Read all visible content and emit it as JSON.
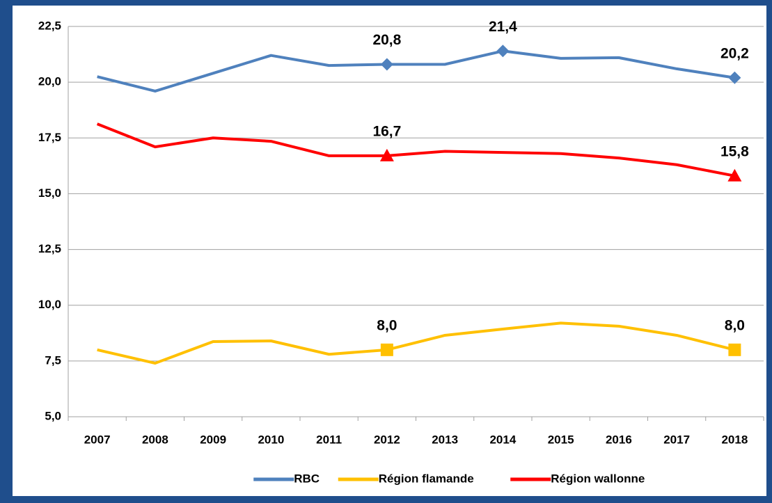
{
  "chart_data": {
    "type": "line",
    "categories": [
      "2007",
      "2008",
      "2009",
      "2010",
      "2011",
      "2012",
      "2013",
      "2014",
      "2015",
      "2016",
      "2017",
      "2018"
    ],
    "series": [
      {
        "name": "RBC",
        "color": "#4f81bd",
        "marker": "diamond",
        "values": [
          20.25,
          19.6,
          20.4,
          21.2,
          20.75,
          20.8,
          20.8,
          21.4,
          21.07,
          21.1,
          20.6,
          20.2
        ],
        "value_labels": [
          null,
          null,
          null,
          null,
          null,
          "20,8",
          null,
          "21,4",
          null,
          null,
          null,
          "20,2"
        ]
      },
      {
        "name": "Région flamande",
        "color": "#ffc000",
        "marker": "square",
        "values": [
          8.0,
          7.4,
          8.37,
          8.4,
          7.8,
          8.0,
          8.65,
          8.93,
          9.2,
          9.06,
          8.65,
          8.0
        ],
        "value_labels": [
          null,
          null,
          null,
          null,
          null,
          "8,0",
          null,
          null,
          null,
          null,
          null,
          "8,0"
        ]
      },
      {
        "name": "Région wallonne",
        "color": "#ff0000",
        "marker": "triangle",
        "values": [
          18.13,
          17.1,
          17.5,
          17.35,
          16.7,
          16.7,
          16.9,
          16.85,
          16.8,
          16.6,
          16.3,
          15.8
        ],
        "value_labels": [
          null,
          null,
          null,
          null,
          null,
          "16,7",
          null,
          null,
          null,
          null,
          null,
          "15,8"
        ]
      }
    ],
    "ylim": [
      5,
      22.5
    ],
    "yticks": [
      {
        "value": 5,
        "label": "5,0"
      },
      {
        "value": 7.5,
        "label": "7,5"
      },
      {
        "value": 10,
        "label": "10,0"
      },
      {
        "value": 12.5,
        "label": "12,5"
      },
      {
        "value": 15,
        "label": "15,0"
      },
      {
        "value": 17.5,
        "label": "17,5"
      },
      {
        "value": 20,
        "label": "20,0"
      },
      {
        "value": 22.5,
        "label": "22,5"
      }
    ],
    "grid": true,
    "legend": "bottom"
  }
}
